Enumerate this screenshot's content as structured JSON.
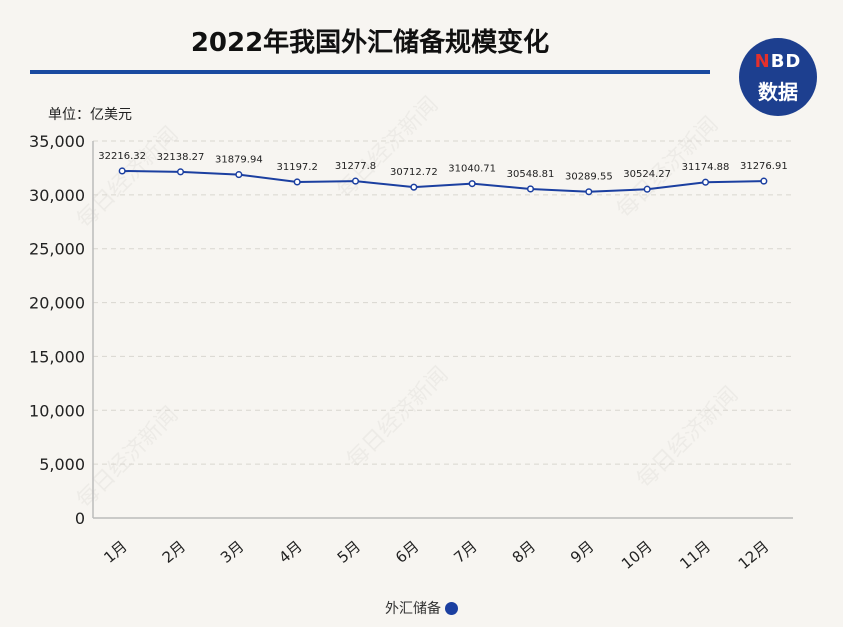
{
  "title": "2022年我国外汇储备规模变化",
  "unit_label": "单位：亿美元",
  "logo": {
    "accent": "N",
    "rest": "BD",
    "line2": "数据"
  },
  "watermark": "每日经济新闻",
  "legend": {
    "label": "外汇储备"
  },
  "colors": {
    "line": "#1b3fa0",
    "title_rule": "#1a4aa0",
    "logo_bg": "#1d3f8f",
    "logo_accent": "#e5302c"
  },
  "chart_data": {
    "type": "line",
    "categories": [
      "1月",
      "2月",
      "3月",
      "4月",
      "5月",
      "6月",
      "7月",
      "8月",
      "9月",
      "10月",
      "11月",
      "12月"
    ],
    "series": [
      {
        "name": "外汇储备",
        "values": [
          32216.32,
          32138.27,
          31879.94,
          31197.2,
          31277.8,
          30712.72,
          31040.71,
          30548.81,
          30289.55,
          30524.27,
          31174.88,
          31276.91
        ]
      }
    ],
    "value_labels": [
      "32216.32",
      "32138.27",
      "31879.94",
      "31197.2",
      "31277.8",
      "30712.72",
      "31040.71",
      "30548.81",
      "30289.55",
      "30524.27",
      "31174.88",
      "31276.91"
    ],
    "y_ticks": [
      "0",
      "5,000",
      "10,000",
      "15,000",
      "20,000",
      "25,000",
      "30,000",
      "35,000"
    ],
    "ylim": [
      0,
      35000
    ],
    "grid": true,
    "legend_position": "bottom-center"
  }
}
